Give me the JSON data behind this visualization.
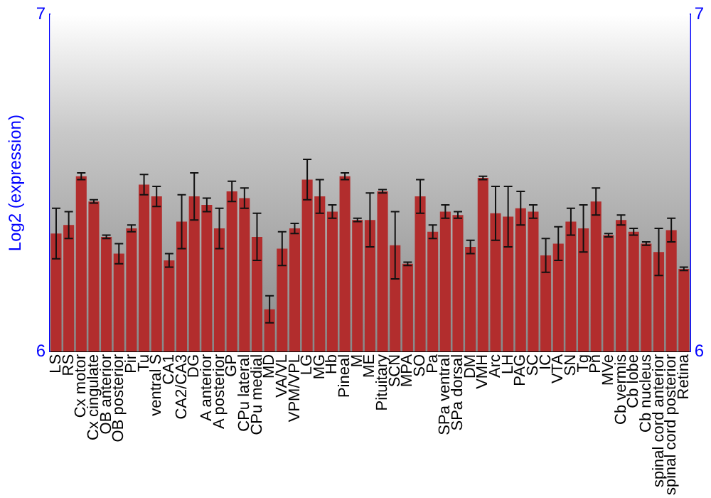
{
  "chart_data": {
    "type": "bar",
    "ylabel": "Log2 (expression)",
    "categories": [
      "LS",
      "RS",
      "Cx motor",
      "Cx cingulate",
      "OB anterior",
      "OB posterior",
      "Pir",
      "Tu",
      "ventral S",
      "CA1",
      "CA2/CA3",
      "DG",
      "A anterior",
      "A posterior",
      "GP",
      "CPu lateral",
      "CPu medial",
      "MD",
      "VA/VL",
      "VPM/VPL",
      "LG",
      "MG",
      "Hb",
      "Pineal",
      "M",
      "ME",
      "Pituitary",
      "SCN",
      "MPA",
      "SO",
      "Pa",
      "SPa ventral",
      "SPa dorsal",
      "DM",
      "VMH",
      "Arc",
      "LH",
      "PAG",
      "SC",
      "IC",
      "VTA",
      "SN",
      "Tg",
      "Pn",
      "MVe",
      "Cb vermis",
      "Cb lobe",
      "Cb nucleus",
      "spinal cord anterior",
      "spinal cord posterior",
      "Retina"
    ],
    "values": [
      6.35,
      6.375,
      6.52,
      6.445,
      6.34,
      6.29,
      6.365,
      6.495,
      6.46,
      6.27,
      6.385,
      6.46,
      6.435,
      6.365,
      6.475,
      6.455,
      6.34,
      6.125,
      6.305,
      6.365,
      6.51,
      6.46,
      6.415,
      6.52,
      6.39,
      6.39,
      6.475,
      6.315,
      6.26,
      6.46,
      6.355,
      6.415,
      6.405,
      6.31,
      6.515,
      6.41,
      6.4,
      6.425,
      6.415,
      6.285,
      6.32,
      6.385,
      6.365,
      6.445,
      6.345,
      6.39,
      6.355,
      6.32,
      6.295,
      6.36,
      6.245
    ],
    "errors": [
      0.075,
      0.04,
      0.01,
      0.005,
      0.005,
      0.03,
      0.01,
      0.03,
      0.03,
      0.02,
      0.08,
      0.07,
      0.02,
      0.06,
      0.03,
      0.03,
      0.07,
      0.04,
      0.05,
      0.015,
      0.06,
      0.05,
      0.02,
      0.01,
      0.005,
      0.08,
      0.005,
      0.1,
      0.005,
      0.05,
      0.02,
      0.02,
      0.01,
      0.02,
      0.005,
      0.08,
      0.09,
      0.05,
      0.02,
      0.05,
      0.05,
      0.04,
      0.07,
      0.04,
      0.005,
      0.015,
      0.01,
      0.005,
      0.07,
      0.035,
      0.005
    ],
    "color": "#b22d2d",
    "ylim": [
      6,
      7
    ],
    "yticks": [
      6,
      7
    ],
    "y2lim": [
      6,
      7
    ],
    "y2ticks": [
      6,
      7
    ],
    "grid": false,
    "legend": false
  }
}
